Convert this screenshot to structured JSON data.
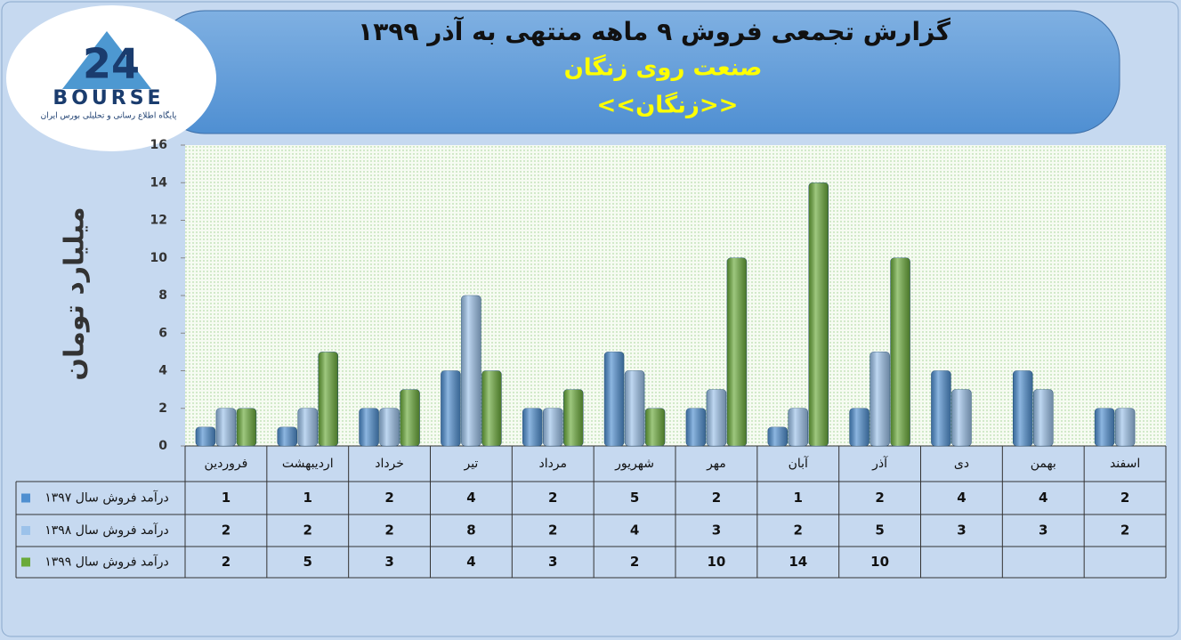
{
  "logo": {
    "number": "24",
    "name": "BOURSE",
    "tagline": "پایگاه اطلاع رسانی و تحلیلی بورس ایران"
  },
  "chart_data": {
    "type": "bar",
    "title": "گزارش تجمعی فروش ۹ ماهه منتهی به آذر ۱۳۹۹",
    "subtitle": "صنعت روی زنگان",
    "symbol": "<<زنگان>>",
    "y_label": "میلیارد تومان",
    "categories": [
      "فروردین",
      "اردیبهشت",
      "خرداد",
      "تیر",
      "مرداد",
      "شهریور",
      "مهر",
      "آبان",
      "آذر",
      "دی",
      "بهمن",
      "اسفند"
    ],
    "series": [
      {
        "name": "درآمد فروش سال ۱۳۹۷",
        "color": "#4f8fd0",
        "values": [
          1,
          1,
          2,
          4,
          2,
          5,
          2,
          1,
          2,
          4,
          4,
          2
        ]
      },
      {
        "name": "درآمد فروش سال ۱۳۹۸",
        "color": "#9cc2ea",
        "values": [
          2,
          2,
          2,
          8,
          2,
          4,
          3,
          2,
          5,
          3,
          3,
          2
        ]
      },
      {
        "name": "درآمد فروش سال ۱۳۹۹",
        "color": "#6aaa3a",
        "values": [
          2,
          5,
          3,
          4,
          3,
          2,
          10,
          14,
          10,
          null,
          null,
          null
        ]
      }
    ],
    "ylim": [
      0,
      16
    ],
    "yticks": [
      0,
      2,
      4,
      6,
      8,
      10,
      12,
      14,
      16
    ],
    "grid": false
  }
}
